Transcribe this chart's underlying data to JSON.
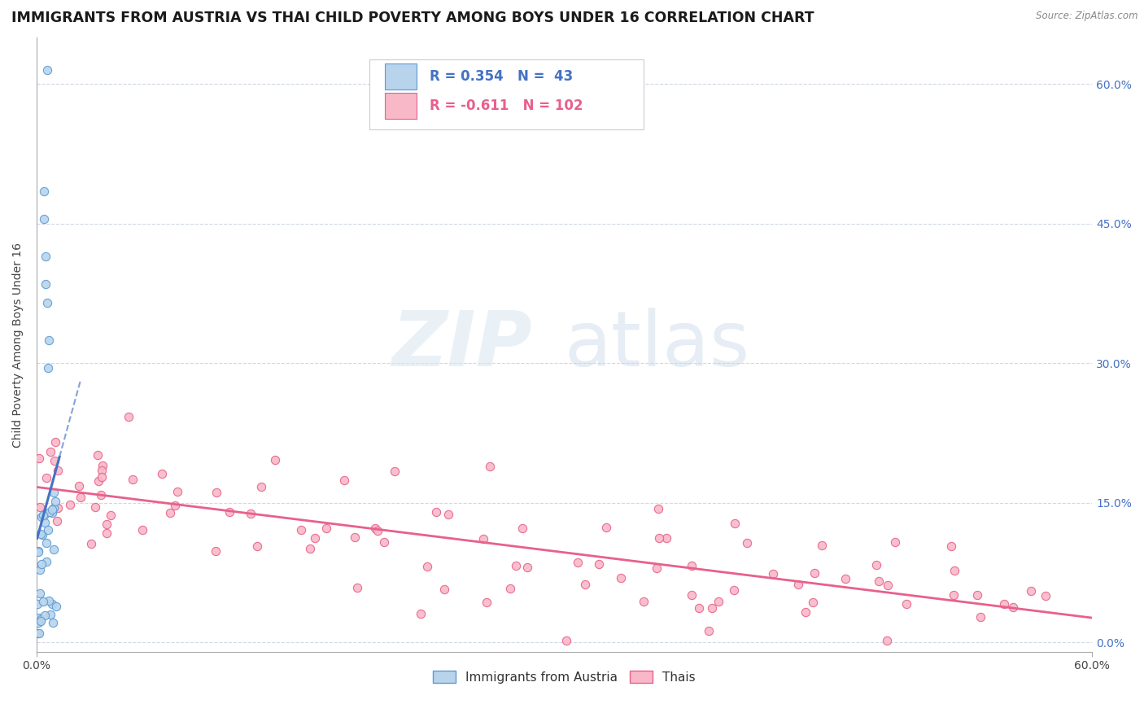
{
  "title": "IMMIGRANTS FROM AUSTRIA VS THAI CHILD POVERTY AMONG BOYS UNDER 16 CORRELATION CHART",
  "source": "Source: ZipAtlas.com",
  "ylabel": "Child Poverty Among Boys Under 16",
  "legend_label1": "Immigrants from Austria",
  "legend_label2": "Thais",
  "R1": 0.354,
  "N1": 43,
  "R2": -0.611,
  "N2": 102,
  "color_austria_fill": "#b8d4ec",
  "color_austria_edge": "#5b9bd5",
  "color_thai_fill": "#f8b8c8",
  "color_thai_edge": "#e8608c",
  "color_austria_line": "#4472c4",
  "color_thai_line": "#e8608c",
  "xmin": 0.0,
  "xmax": 0.6,
  "ymin": -0.01,
  "ymax": 0.65,
  "ytick_vals": [
    0.0,
    0.15,
    0.3,
    0.45,
    0.6
  ],
  "ytick_labels_right": [
    "0.0%",
    "15.0%",
    "30.0%",
    "45.0%",
    "60.0%"
  ],
  "watermark_zip": "ZIP",
  "watermark_atlas": "atlas",
  "background_color": "#ffffff",
  "grid_color": "#d0d8e8",
  "title_fontsize": 12.5,
  "axis_label_fontsize": 10,
  "tick_fontsize": 10
}
